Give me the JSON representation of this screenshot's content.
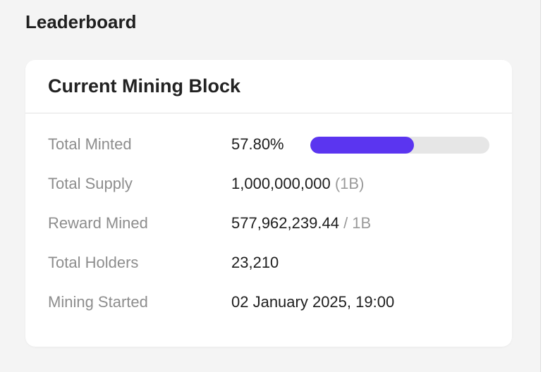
{
  "page": {
    "section_title": "Leaderboard"
  },
  "card": {
    "title": "Current Mining Block",
    "rows": [
      {
        "label": "Total Minted",
        "value": "57.80%",
        "progress_percent": 57.8,
        "progress_color": "#5b35f0",
        "track_color": "#e6e6e6"
      },
      {
        "label": "Total Supply",
        "value": "1,000,000,000",
        "secondary": "(1B)"
      },
      {
        "label": "Reward Mined",
        "value": "577,962,239.44",
        "secondary": "/ 1B"
      },
      {
        "label": "Total Holders",
        "value": "23,210"
      },
      {
        "label": "Mining Started",
        "value": "02 January 2025, 19:00"
      }
    ]
  }
}
